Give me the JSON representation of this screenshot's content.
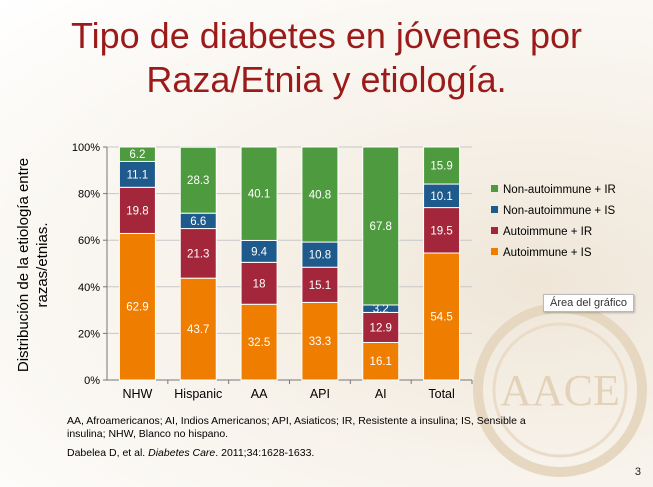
{
  "title_line1": "Tipo de diabetes en jóvenes por",
  "title_line2": "Raza/Etnia y etiología.",
  "tooltip": "Área del gráfico",
  "footnote": "AA, Afroamericanos; AI, Indios Americanos; API, Asiaticos; IR, Resistente a insulina; IS, Sensible a insulina; NHW, Blanco no hispano.",
  "citation": {
    "authors": "Dabelea D, et al.",
    "journal": "Diabetes Care",
    "details": ". 2011;34:1628-1633."
  },
  "page_number": "3",
  "seal_text": "AACE",
  "chart_data": {
    "type": "bar",
    "stacked": true,
    "ylabel": "Distribución de la etiología entre razas/etnias.",
    "ylabel_lines": [
      "Distribución de la etiología entre",
      "razas/etnias."
    ],
    "ylim": [
      0,
      100
    ],
    "yticks": [
      "0%",
      "20%",
      "40%",
      "60%",
      "80%",
      "100%"
    ],
    "categories": [
      "NHW",
      "Hispanic",
      "AA",
      "API",
      "AI",
      "Total"
    ],
    "series": [
      {
        "name": "Autoimmune + IS",
        "color": "#ef7d00",
        "values": [
          62.9,
          43.7,
          32.5,
          33.3,
          16.1,
          54.5
        ]
      },
      {
        "name": "Autoimmune + IR",
        "color": "#a3263a",
        "values": [
          19.8,
          21.3,
          18,
          15.1,
          12.9,
          19.5
        ]
      },
      {
        "name": "Non-autoimmune + IS",
        "color": "#1f5a8c",
        "values": [
          11.1,
          6.6,
          9.4,
          10.8,
          3.2,
          10.1
        ]
      },
      {
        "name": "Non-autoimmune + IR",
        "color": "#4e9a3e",
        "values": [
          6.2,
          28.3,
          40.1,
          40.8,
          67.8,
          15.9
        ]
      }
    ],
    "legend_position": "right",
    "legend_order": [
      "Non-autoimmune + IR",
      "Non-autoimmune + IS",
      "Autoimmune + IR",
      "Autoimmune + IS"
    ]
  }
}
